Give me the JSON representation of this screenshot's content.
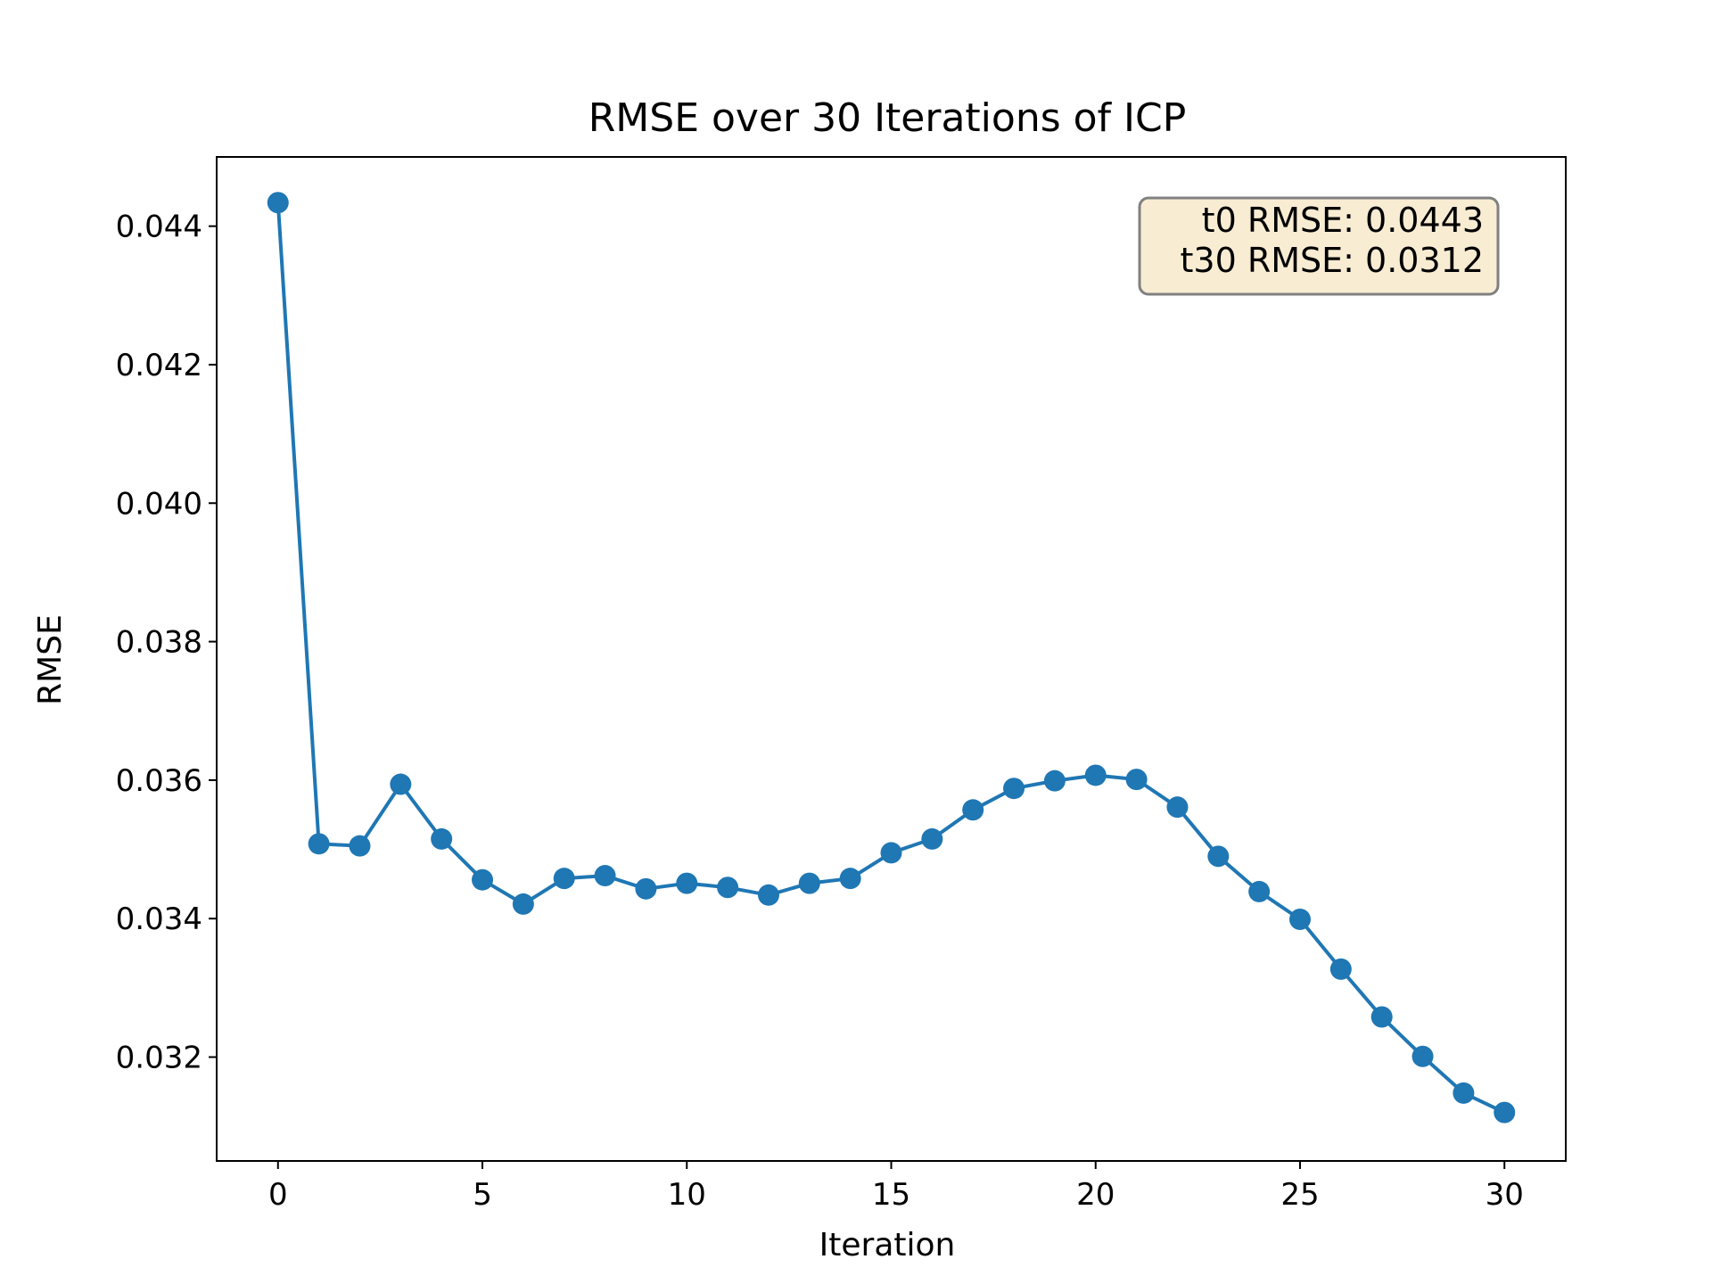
{
  "chart_data": {
    "type": "line",
    "title": "RMSE over 30 Iterations of ICP",
    "xlabel": "Iteration",
    "ylabel": "RMSE",
    "xlim": [
      -1.5,
      31.5
    ],
    "ylim": [
      0.0305,
      0.045
    ],
    "xticks": [
      0,
      5,
      10,
      15,
      20,
      25,
      30
    ],
    "xtick_labels": [
      "0",
      "5",
      "10",
      "15",
      "20",
      "25",
      "30"
    ],
    "yticks": [
      0.032,
      0.034,
      0.036,
      0.038,
      0.04,
      0.042,
      0.044
    ],
    "ytick_labels": [
      "0.032",
      "0.034",
      "0.036",
      "0.038",
      "0.040",
      "0.042",
      "0.044"
    ],
    "grid": false,
    "series": [
      {
        "color": "#1f77b4",
        "marker": "circle",
        "x": [
          0,
          1,
          2,
          3,
          4,
          5,
          6,
          7,
          8,
          9,
          10,
          11,
          12,
          13,
          14,
          15,
          16,
          17,
          18,
          19,
          20,
          21,
          22,
          23,
          24,
          25,
          26,
          27,
          28,
          29,
          30
        ],
        "y": [
          0.04434,
          0.03508,
          0.03505,
          0.03594,
          0.03515,
          0.03456,
          0.03421,
          0.03458,
          0.03462,
          0.03443,
          0.03451,
          0.03445,
          0.03434,
          0.03451,
          0.03458,
          0.03495,
          0.03515,
          0.03557,
          0.03588,
          0.03599,
          0.03607,
          0.03601,
          0.03561,
          0.0349,
          0.03439,
          0.03399,
          0.03327,
          0.03258,
          0.03201,
          0.03148,
          0.0312
        ]
      }
    ],
    "annotation": {
      "lines": [
        "t0 RMSE: 0.0443",
        "t30 RMSE: 0.0312"
      ],
      "placement": "top-right",
      "background": "#f8ecd3",
      "border": "#808080"
    }
  }
}
